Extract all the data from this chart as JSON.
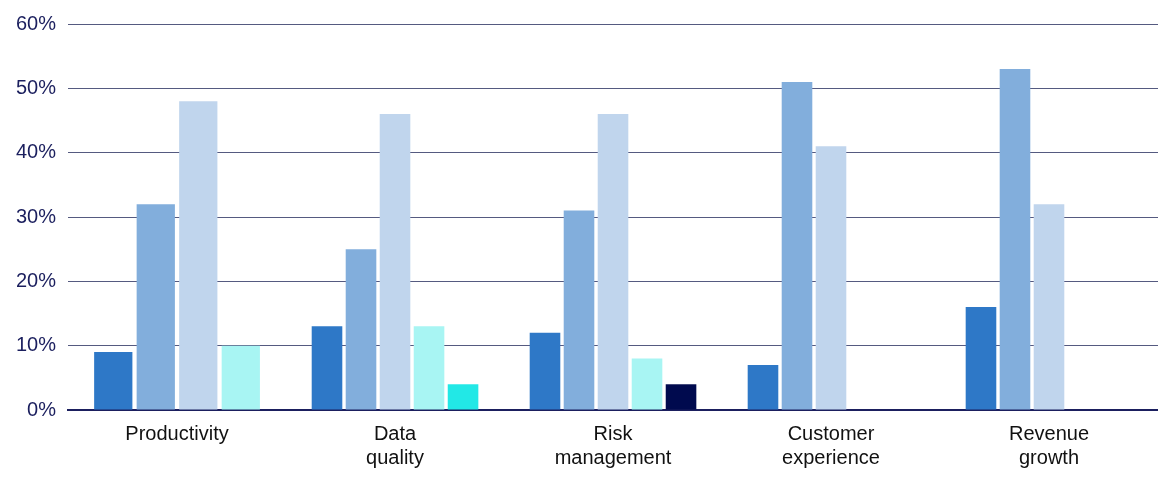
{
  "chart_data": {
    "type": "bar",
    "categories": [
      "Productivity",
      "Data quality",
      "Risk management",
      "Customer experience",
      "Revenue growth"
    ],
    "series": [
      {
        "color": "#2e78c7",
        "values": [
          9,
          13,
          12,
          7,
          16
        ]
      },
      {
        "color": "#82aedc",
        "values": [
          32,
          25,
          31,
          51,
          53
        ]
      },
      {
        "color": "#c0d5ed",
        "values": [
          48,
          46,
          46,
          41,
          32
        ]
      },
      {
        "color": "#a8f5f3",
        "values": [
          10,
          13,
          8,
          0,
          0
        ]
      },
      {
        "color": "#22e8e6",
        "values": [
          null,
          4,
          null,
          0,
          0
        ]
      },
      {
        "color": "#000a4e",
        "values": [
          null,
          null,
          4,
          null,
          null
        ]
      }
    ],
    "ylim": [
      0,
      60
    ],
    "yticks": [
      {
        "value": 0,
        "label": "0%"
      },
      {
        "value": 10,
        "label": "10%"
      },
      {
        "value": 20,
        "label": "20%"
      },
      {
        "value": 30,
        "label": "30%"
      },
      {
        "value": 40,
        "label": "40%"
      },
      {
        "value": 50,
        "label": "50%"
      },
      {
        "value": 60,
        "label": "60%"
      }
    ],
    "grid": "y",
    "legend": false
  }
}
